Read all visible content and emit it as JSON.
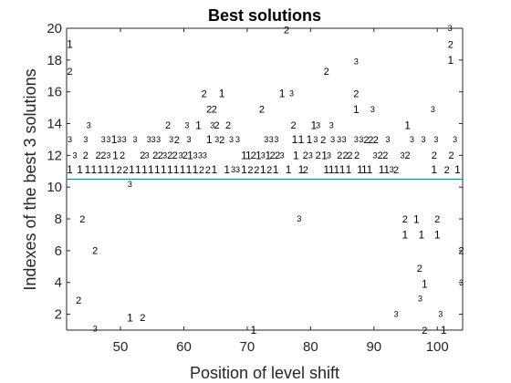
{
  "chart_data": {
    "type": "scatter",
    "title": "Best solutions",
    "xlabel": "Position of level shift",
    "ylabel": "Indexes of the best 3 solutions",
    "xlim": [
      41.5,
      104
    ],
    "ylim": [
      1,
      20
    ],
    "xticks": [
      50,
      60,
      70,
      80,
      90,
      100
    ],
    "xtick_labels": [
      "50",
      "60",
      "70",
      "80",
      "90",
      "100"
    ],
    "yticks": [
      2,
      4,
      6,
      8,
      10,
      12,
      14,
      16,
      18,
      20
    ],
    "ytick_labels": [
      "2",
      "4",
      "6",
      "8",
      "10",
      "12",
      "14",
      "16",
      "18",
      "20"
    ],
    "grid": false,
    "box": true,
    "reference_line": {
      "y": 10.5,
      "color": "#1f8a8a"
    },
    "colors": {
      "axis": "#262626",
      "text": "#000000",
      "background": "#ffffff"
    },
    "points": [
      {
        "x": 42,
        "y": 19,
        "label": "1"
      },
      {
        "x": 42,
        "y": 17.3,
        "label": "2"
      },
      {
        "x": 42,
        "y": 13,
        "label": "3"
      },
      {
        "x": 42,
        "y": 11.1,
        "label": "1"
      },
      {
        "x": 42.8,
        "y": 12,
        "label": "3"
      },
      {
        "x": 43.4,
        "y": 2.9,
        "label": "2"
      },
      {
        "x": 43.6,
        "y": 11.1,
        "label": "1"
      },
      {
        "x": 44,
        "y": 8,
        "label": "2"
      },
      {
        "x": 44.5,
        "y": 12,
        "label": "2"
      },
      {
        "x": 44.5,
        "y": 13,
        "label": "3"
      },
      {
        "x": 45,
        "y": 13.9,
        "label": "3"
      },
      {
        "x": 44.8,
        "y": 11.1,
        "label": "1"
      },
      {
        "x": 45.8,
        "y": 11.1,
        "label": "1"
      },
      {
        "x": 46,
        "y": 6,
        "label": "2"
      },
      {
        "x": 46,
        "y": 1.1,
        "label": "3"
      },
      {
        "x": 46.5,
        "y": 12,
        "label": "2"
      },
      {
        "x": 46.8,
        "y": 11.1,
        "label": "1"
      },
      {
        "x": 47.3,
        "y": 12,
        "label": "2"
      },
      {
        "x": 47.3,
        "y": 13,
        "label": "3"
      },
      {
        "x": 47.8,
        "y": 11.1,
        "label": "1"
      },
      {
        "x": 48.1,
        "y": 12,
        "label": "3"
      },
      {
        "x": 48.1,
        "y": 13,
        "label": "3"
      },
      {
        "x": 48.8,
        "y": 11.1,
        "label": "1"
      },
      {
        "x": 49,
        "y": 13,
        "label": "1"
      },
      {
        "x": 49.2,
        "y": 12,
        "label": "1"
      },
      {
        "x": 49.8,
        "y": 11.1,
        "label": "2"
      },
      {
        "x": 49.8,
        "y": 13,
        "label": "3"
      },
      {
        "x": 50.3,
        "y": 12,
        "label": "2"
      },
      {
        "x": 50.6,
        "y": 13,
        "label": "3"
      },
      {
        "x": 50.8,
        "y": 11.1,
        "label": "2"
      },
      {
        "x": 51.5,
        "y": 10.2,
        "label": "3"
      },
      {
        "x": 51.5,
        "y": 1.8,
        "label": "1"
      },
      {
        "x": 51.8,
        "y": 11.1,
        "label": "1"
      },
      {
        "x": 52.3,
        "y": 13,
        "label": "3"
      },
      {
        "x": 52.8,
        "y": 11.1,
        "label": "1"
      },
      {
        "x": 53.5,
        "y": 1.8,
        "label": "2"
      },
      {
        "x": 53.8,
        "y": 11.1,
        "label": "1"
      },
      {
        "x": 53.5,
        "y": 12,
        "label": "2"
      },
      {
        "x": 54.2,
        "y": 12,
        "label": "3"
      },
      {
        "x": 54.5,
        "y": 13,
        "label": "3"
      },
      {
        "x": 54.8,
        "y": 11.1,
        "label": "1"
      },
      {
        "x": 55.2,
        "y": 13,
        "label": "3"
      },
      {
        "x": 55.5,
        "y": 12,
        "label": "2"
      },
      {
        "x": 55.8,
        "y": 11.1,
        "label": "1"
      },
      {
        "x": 56,
        "y": 13,
        "label": "3"
      },
      {
        "x": 56.3,
        "y": 12,
        "label": "2"
      },
      {
        "x": 56.8,
        "y": 11.1,
        "label": "1"
      },
      {
        "x": 57,
        "y": 12,
        "label": "3"
      },
      {
        "x": 57.5,
        "y": 13.9,
        "label": "2"
      },
      {
        "x": 57.8,
        "y": 11.1,
        "label": "1"
      },
      {
        "x": 57.8,
        "y": 12,
        "label": "2"
      },
      {
        "x": 58,
        "y": 13,
        "label": "3"
      },
      {
        "x": 58.6,
        "y": 12,
        "label": "2"
      },
      {
        "x": 58.8,
        "y": 11.1,
        "label": "1"
      },
      {
        "x": 58.9,
        "y": 13,
        "label": "2"
      },
      {
        "x": 59.5,
        "y": 12,
        "label": "3"
      },
      {
        "x": 59.8,
        "y": 11.1,
        "label": "1"
      },
      {
        "x": 60.2,
        "y": 12,
        "label": "2"
      },
      {
        "x": 60.5,
        "y": 13.9,
        "label": "3"
      },
      {
        "x": 60.8,
        "y": 11.1,
        "label": "1"
      },
      {
        "x": 60.8,
        "y": 13,
        "label": "3"
      },
      {
        "x": 61,
        "y": 12,
        "label": "1"
      },
      {
        "x": 61.8,
        "y": 11.1,
        "label": "1"
      },
      {
        "x": 61.8,
        "y": 12,
        "label": "3"
      },
      {
        "x": 62.6,
        "y": 12,
        "label": "3"
      },
      {
        "x": 62.3,
        "y": 13.9,
        "label": "1"
      },
      {
        "x": 62.8,
        "y": 11.1,
        "label": "2"
      },
      {
        "x": 63.3,
        "y": 12,
        "label": "3"
      },
      {
        "x": 63.8,
        "y": 11.1,
        "label": "2"
      },
      {
        "x": 64,
        "y": 13,
        "label": "1"
      },
      {
        "x": 63.2,
        "y": 15.9,
        "label": "2"
      },
      {
        "x": 64,
        "y": 14.9,
        "label": "2"
      },
      {
        "x": 64.5,
        "y": 13.9,
        "label": "3"
      },
      {
        "x": 64.8,
        "y": 11.1,
        "label": "1"
      },
      {
        "x": 64.8,
        "y": 14.9,
        "label": "2"
      },
      {
        "x": 65.2,
        "y": 13.9,
        "label": "2"
      },
      {
        "x": 65.2,
        "y": 13,
        "label": "3"
      },
      {
        "x": 66,
        "y": 15.9,
        "label": "1"
      },
      {
        "x": 66,
        "y": 13,
        "label": "2"
      },
      {
        "x": 66.8,
        "y": 11.1,
        "label": "1"
      },
      {
        "x": 67,
        "y": 13.9,
        "label": "2"
      },
      {
        "x": 67.5,
        "y": 13,
        "label": "3"
      },
      {
        "x": 67.8,
        "y": 11.1,
        "label": "3"
      },
      {
        "x": 68.5,
        "y": 13,
        "label": "3"
      },
      {
        "x": 68.5,
        "y": 11.1,
        "label": "3"
      },
      {
        "x": 69.5,
        "y": 12,
        "label": "1"
      },
      {
        "x": 69.5,
        "y": 11.1,
        "label": "1"
      },
      {
        "x": 70.2,
        "y": 12,
        "label": "1"
      },
      {
        "x": 70.5,
        "y": 11.1,
        "label": "2"
      },
      {
        "x": 71,
        "y": 12,
        "label": "2"
      },
      {
        "x": 71,
        "y": 1,
        "label": "1"
      },
      {
        "x": 71.5,
        "y": 11.1,
        "label": "2"
      },
      {
        "x": 71.8,
        "y": 12,
        "label": "1"
      },
      {
        "x": 72.3,
        "y": 14.9,
        "label": "2"
      },
      {
        "x": 72.5,
        "y": 11.1,
        "label": "1"
      },
      {
        "x": 72.5,
        "y": 12,
        "label": "3"
      },
      {
        "x": 73,
        "y": 13,
        "label": "3"
      },
      {
        "x": 73.3,
        "y": 12,
        "label": "1"
      },
      {
        "x": 73.5,
        "y": 11.1,
        "label": "2"
      },
      {
        "x": 73.8,
        "y": 13,
        "label": "3"
      },
      {
        "x": 74,
        "y": 12,
        "label": "2"
      },
      {
        "x": 74.5,
        "y": 11.1,
        "label": "1"
      },
      {
        "x": 74.6,
        "y": 13,
        "label": "3"
      },
      {
        "x": 74.8,
        "y": 12,
        "label": "2"
      },
      {
        "x": 75.5,
        "y": 15.9,
        "label": "1"
      },
      {
        "x": 75.5,
        "y": 12,
        "label": "3"
      },
      {
        "x": 76.2,
        "y": 19.9,
        "label": "2"
      },
      {
        "x": 76.5,
        "y": 11.1,
        "label": "1"
      },
      {
        "x": 77,
        "y": 15.9,
        "label": "3"
      },
      {
        "x": 77.3,
        "y": 13.9,
        "label": "2"
      },
      {
        "x": 77.5,
        "y": 13,
        "label": "1"
      },
      {
        "x": 77.7,
        "y": 12,
        "label": "1"
      },
      {
        "x": 78.2,
        "y": 8,
        "label": "3"
      },
      {
        "x": 78.5,
        "y": 11.1,
        "label": "1"
      },
      {
        "x": 78.5,
        "y": 13,
        "label": "1"
      },
      {
        "x": 79.2,
        "y": 11.1,
        "label": "2"
      },
      {
        "x": 79.2,
        "y": 12,
        "label": "2"
      },
      {
        "x": 79.8,
        "y": 13,
        "label": "1"
      },
      {
        "x": 80,
        "y": 12,
        "label": "3"
      },
      {
        "x": 80.5,
        "y": 13.9,
        "label": "1"
      },
      {
        "x": 80.8,
        "y": 13,
        "label": "3"
      },
      {
        "x": 81.2,
        "y": 13.9,
        "label": "3"
      },
      {
        "x": 81.2,
        "y": 12,
        "label": "2"
      },
      {
        "x": 82,
        "y": 13,
        "label": "2"
      },
      {
        "x": 82.2,
        "y": 12,
        "label": "1"
      },
      {
        "x": 82.5,
        "y": 17.3,
        "label": "2"
      },
      {
        "x": 82.5,
        "y": 11.1,
        "label": "1"
      },
      {
        "x": 82.9,
        "y": 12,
        "label": "3"
      },
      {
        "x": 83.3,
        "y": 13.9,
        "label": "3"
      },
      {
        "x": 83.3,
        "y": 11.1,
        "label": "1"
      },
      {
        "x": 83.5,
        "y": 13,
        "label": "3"
      },
      {
        "x": 84.1,
        "y": 11.1,
        "label": "1"
      },
      {
        "x": 84.6,
        "y": 12,
        "label": "2"
      },
      {
        "x": 84.5,
        "y": 13,
        "label": "3"
      },
      {
        "x": 85.3,
        "y": 13,
        "label": "3"
      },
      {
        "x": 85,
        "y": 11.1,
        "label": "1"
      },
      {
        "x": 85.5,
        "y": 12,
        "label": "2"
      },
      {
        "x": 86,
        "y": 11.1,
        "label": "1"
      },
      {
        "x": 86.2,
        "y": 12,
        "label": "2"
      },
      {
        "x": 87.2,
        "y": 17.9,
        "label": "3"
      },
      {
        "x": 87.2,
        "y": 15.9,
        "label": "2"
      },
      {
        "x": 87.2,
        "y": 14.9,
        "label": "1"
      },
      {
        "x": 87.2,
        "y": 13,
        "label": "3"
      },
      {
        "x": 87.3,
        "y": 12,
        "label": "2"
      },
      {
        "x": 87.8,
        "y": 11.1,
        "label": "1"
      },
      {
        "x": 88,
        "y": 13,
        "label": "3"
      },
      {
        "x": 88.5,
        "y": 11.1,
        "label": "1"
      },
      {
        "x": 88.8,
        "y": 13,
        "label": "2"
      },
      {
        "x": 89.3,
        "y": 11.1,
        "label": "1"
      },
      {
        "x": 89.5,
        "y": 13,
        "label": "2"
      },
      {
        "x": 89.8,
        "y": 14.9,
        "label": "3"
      },
      {
        "x": 90.2,
        "y": 12,
        "label": "3"
      },
      {
        "x": 90.3,
        "y": 13,
        "label": "2"
      },
      {
        "x": 91,
        "y": 12,
        "label": "2"
      },
      {
        "x": 91.2,
        "y": 11.1,
        "label": "1"
      },
      {
        "x": 91.8,
        "y": 12,
        "label": "2"
      },
      {
        "x": 92,
        "y": 11.1,
        "label": "1"
      },
      {
        "x": 92.2,
        "y": 13,
        "label": "3"
      },
      {
        "x": 92.8,
        "y": 11.1,
        "label": "3"
      },
      {
        "x": 93.5,
        "y": 11.1,
        "label": "2"
      },
      {
        "x": 93.5,
        "y": 2,
        "label": "3"
      },
      {
        "x": 94.5,
        "y": 12,
        "label": "3"
      },
      {
        "x": 94.9,
        "y": 8,
        "label": "2"
      },
      {
        "x": 94.9,
        "y": 7,
        "label": "1"
      },
      {
        "x": 95.3,
        "y": 13.9,
        "label": "1"
      },
      {
        "x": 95.3,
        "y": 12,
        "label": "2"
      },
      {
        "x": 96,
        "y": 13,
        "label": "3"
      },
      {
        "x": 96.7,
        "y": 8,
        "label": "1"
      },
      {
        "x": 97.2,
        "y": 4.9,
        "label": "2"
      },
      {
        "x": 97.3,
        "y": 3,
        "label": "3"
      },
      {
        "x": 97.5,
        "y": 7,
        "label": "1"
      },
      {
        "x": 97.8,
        "y": 13,
        "label": "3"
      },
      {
        "x": 98,
        "y": 3.9,
        "label": "1"
      },
      {
        "x": 98,
        "y": 1,
        "label": "2"
      },
      {
        "x": 99.3,
        "y": 14.9,
        "label": "3"
      },
      {
        "x": 99.5,
        "y": 12,
        "label": "2"
      },
      {
        "x": 99.5,
        "y": 11.1,
        "label": "1"
      },
      {
        "x": 99.8,
        "y": 13,
        "label": "3"
      },
      {
        "x": 100,
        "y": 8,
        "label": "2"
      },
      {
        "x": 100,
        "y": 7,
        "label": "1"
      },
      {
        "x": 100.5,
        "y": 2,
        "label": "3"
      },
      {
        "x": 101,
        "y": 1,
        "label": "1"
      },
      {
        "x": 101.5,
        "y": 11.1,
        "label": "2"
      },
      {
        "x": 102,
        "y": 20,
        "label": "3"
      },
      {
        "x": 102.1,
        "y": 19,
        "label": "2"
      },
      {
        "x": 102.1,
        "y": 18,
        "label": "1"
      },
      {
        "x": 102.2,
        "y": 12,
        "label": "2"
      },
      {
        "x": 102.8,
        "y": 13,
        "label": "3"
      },
      {
        "x": 103.2,
        "y": 11.1,
        "label": "1"
      },
      {
        "x": 103.8,
        "y": 6,
        "label": "2"
      },
      {
        "x": 103.8,
        "y": 4,
        "label": "3"
      }
    ]
  }
}
